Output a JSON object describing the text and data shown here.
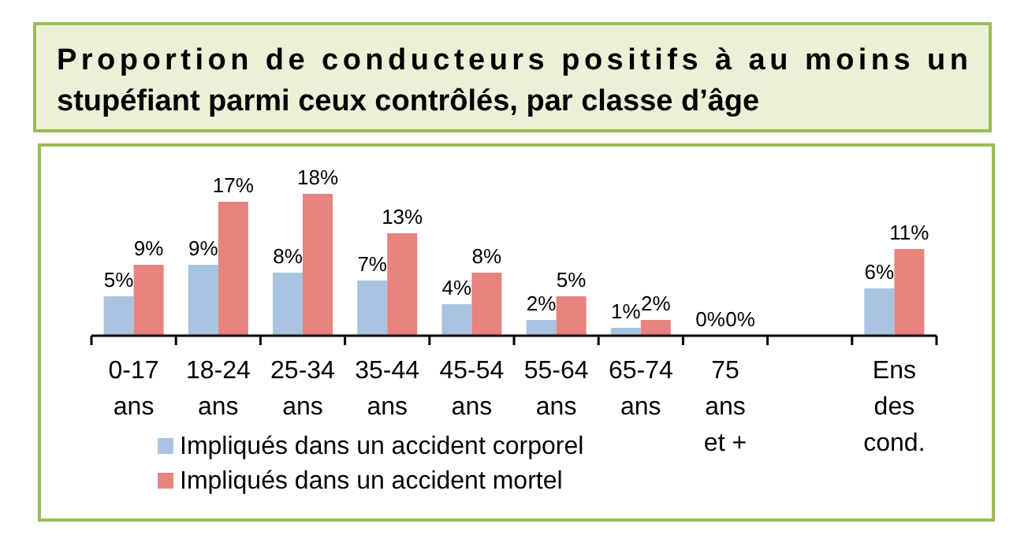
{
  "chart_data": {
    "type": "bar",
    "title": "Proportion de conducteurs positifs à au moins un stupéfiant parmi ceux contrôlés, par classe d’âge",
    "legend": "bottom",
    "categories": [
      "0-17 ans",
      "18-24 ans",
      "25-34 ans",
      "35-44 ans",
      "45-54 ans",
      "55-64 ans",
      "65-74 ans",
      "75 ans et +",
      null,
      "Ens des cond."
    ],
    "series": [
      {
        "name": "Impliqués dans un accident corporel",
        "color": "#a9c4e0",
        "values": [
          5,
          9,
          8,
          7,
          4,
          2,
          1,
          0,
          null,
          6
        ],
        "value_labels": [
          "5%",
          "9%",
          "8%",
          "7%",
          "4%",
          "2%",
          "1%",
          "0%",
          null,
          "6%"
        ]
      },
      {
        "name": "Impliqués dans un accident mortel",
        "color": "#e8837f",
        "values": [
          9,
          17,
          18,
          13,
          8,
          5,
          2,
          0,
          null,
          11
        ],
        "value_labels": [
          "9%",
          "17%",
          "18%",
          "13%",
          "8%",
          "5%",
          "2%",
          "0%",
          null,
          "11%"
        ]
      }
    ]
  }
}
